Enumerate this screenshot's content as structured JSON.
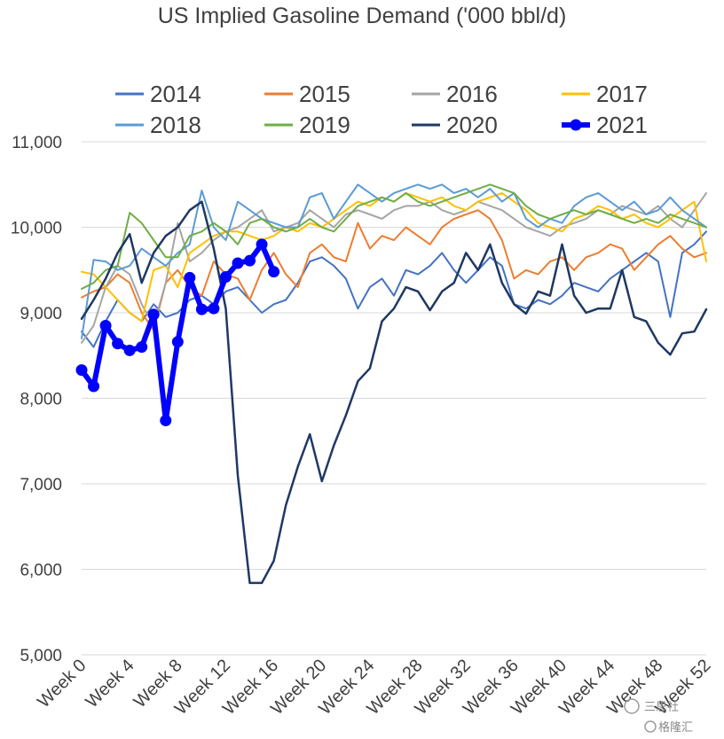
{
  "chart_data": {
    "type": "line",
    "title": "US Implied Gasoline Demand ('000 bbl/d)",
    "xlabel": "",
    "ylabel": "",
    "ylim": [
      5000,
      11000
    ],
    "xlim": [
      0,
      52
    ],
    "y_ticks": [
      "5,000",
      "6,000",
      "7,000",
      "8,000",
      "9,000",
      "10,000",
      "11,000"
    ],
    "y_tick_values": [
      5000,
      6000,
      7000,
      8000,
      9000,
      10000,
      11000
    ],
    "x_ticks": [
      "Week 0",
      "Week 4",
      "Week 8",
      "Week 12",
      "Week 16",
      "Week 20",
      "Week 24",
      "Week 28",
      "Week 32",
      "Week 36",
      "Week 40",
      "Week 44",
      "Week 48",
      "Week 52"
    ],
    "x_tick_values": [
      0,
      4,
      8,
      12,
      16,
      20,
      24,
      28,
      32,
      36,
      40,
      44,
      48,
      52
    ],
    "grid": "horizontal",
    "legend_position": "top",
    "series": [
      {
        "name": "2014",
        "color": "#4472C4",
        "width": 2,
        "values": [
          8780,
          8600,
          8900,
          9150,
          9000,
          8900,
          9100,
          8950,
          9000,
          9150,
          9200,
          9100,
          9250,
          9300,
          9150,
          9000,
          9100,
          9150,
          9350,
          9600,
          9650,
          9550,
          9400,
          9050,
          9300,
          9400,
          9200,
          9500,
          9450,
          9550,
          9700,
          9500,
          9350,
          9500,
          9650,
          9550,
          9100,
          9050,
          9150,
          9100,
          9200,
          9350,
          9300,
          9250,
          9400,
          9500,
          9600,
          9700,
          9600,
          8950,
          9700,
          9800,
          9950
        ]
      },
      {
        "name": "2015",
        "color": "#ED7D31",
        "width": 2,
        "values": [
          9180,
          9250,
          9300,
          9450,
          9350,
          9000,
          8800,
          9350,
          9500,
          9300,
          9200,
          9600,
          9450,
          9400,
          9150,
          9500,
          9700,
          9450,
          9300,
          9700,
          9800,
          9650,
          9600,
          10050,
          9750,
          9900,
          9850,
          10000,
          9900,
          9800,
          10000,
          10100,
          10150,
          10200,
          10100,
          9850,
          9400,
          9500,
          9450,
          9600,
          9650,
          9500,
          9650,
          9700,
          9800,
          9750,
          9500,
          9650,
          9800,
          9900,
          9750,
          9650,
          9700
        ]
      },
      {
        "name": "2016",
        "color": "#A5A5A5",
        "width": 2,
        "values": [
          8650,
          8850,
          9300,
          9550,
          9450,
          9100,
          8850,
          9350,
          10050,
          9600,
          9700,
          9850,
          9950,
          10000,
          10100,
          10200,
          9950,
          10000,
          10050,
          10200,
          10100,
          10000,
          10150,
          10200,
          10150,
          10100,
          10200,
          10250,
          10250,
          10300,
          10200,
          10150,
          10200,
          10300,
          10250,
          10200,
          10100,
          10000,
          9950,
          9900,
          10000,
          10050,
          10100,
          10200,
          10150,
          10250,
          10200,
          10150,
          10250,
          10100,
          10000,
          10200,
          10400
        ]
      },
      {
        "name": "2017",
        "color": "#FFC000",
        "width": 2,
        "values": [
          9480,
          9450,
          9300,
          9150,
          9000,
          8900,
          9500,
          9550,
          9300,
          9700,
          9800,
          9900,
          9950,
          9950,
          9900,
          9850,
          9900,
          10000,
          9950,
          10050,
          10000,
          10100,
          10200,
          10300,
          10250,
          10350,
          10300,
          10400,
          10350,
          10300,
          10350,
          10250,
          10200,
          10300,
          10350,
          10400,
          10300,
          10200,
          10050,
          10000,
          9950,
          10100,
          10150,
          10250,
          10200,
          10100,
          10150,
          10050,
          10000,
          10100,
          10200,
          10300,
          9600
        ]
      },
      {
        "name": "2018",
        "color": "#5B9BD5",
        "width": 2,
        "values": [
          8700,
          9620,
          9600,
          9500,
          9550,
          9750,
          9650,
          9550,
          9700,
          9800,
          10430,
          10000,
          9850,
          10300,
          10200,
          10100,
          10050,
          10000,
          10000,
          10350,
          10400,
          10100,
          10300,
          10500,
          10400,
          10300,
          10400,
          10450,
          10500,
          10450,
          10500,
          10400,
          10450,
          10350,
          10450,
          10300,
          10400,
          10100,
          10000,
          10100,
          10050,
          10250,
          10350,
          10400,
          10300,
          10200,
          10300,
          10150,
          10200,
          10350,
          10200,
          10100,
          10000
        ]
      },
      {
        "name": "2019",
        "color": "#70AD47",
        "width": 2,
        "values": [
          9280,
          9350,
          9500,
          9550,
          10170,
          10050,
          9850,
          9650,
          9650,
          9900,
          9950,
          10050,
          9950,
          9800,
          10050,
          10100,
          10000,
          9950,
          10000,
          10100,
          10000,
          9950,
          10100,
          10250,
          10300,
          10350,
          10300,
          10400,
          10300,
          10250,
          10300,
          10350,
          10400,
          10450,
          10500,
          10450,
          10400,
          10250,
          10150,
          10100,
          10150,
          10200,
          10150,
          10200,
          10150,
          10100,
          10050,
          10100,
          10050,
          10150,
          10100,
          10050,
          10000
        ]
      },
      {
        "name": "2020",
        "color": "#1F3864",
        "width": 2.5,
        "values": [
          8930,
          9150,
          9400,
          9700,
          9920,
          9350,
          9700,
          9900,
          10000,
          10200,
          10300,
          9750,
          9050,
          7100,
          5840,
          5840,
          6100,
          6750,
          7200,
          7580,
          7030,
          7450,
          7800,
          8200,
          8350,
          8900,
          9050,
          9300,
          9250,
          9030,
          9250,
          9350,
          9700,
          9500,
          9800,
          9350,
          9100,
          8990,
          9250,
          9200,
          9800,
          9200,
          9000,
          9050,
          9050,
          9500,
          8950,
          8900,
          8650,
          8510,
          8760,
          8780,
          9040
        ]
      },
      {
        "name": "2021",
        "color": "#0000FF",
        "width": 6,
        "markers": true,
        "values": [
          8330,
          8140,
          8850,
          8640,
          8560,
          8600,
          8980,
          7740,
          8660,
          9410,
          9040,
          9050,
          9420,
          9580,
          9610,
          9800,
          9480
        ]
      }
    ]
  },
  "watermark": {
    "text": "格隆汇",
    "sub": "三思社"
  }
}
